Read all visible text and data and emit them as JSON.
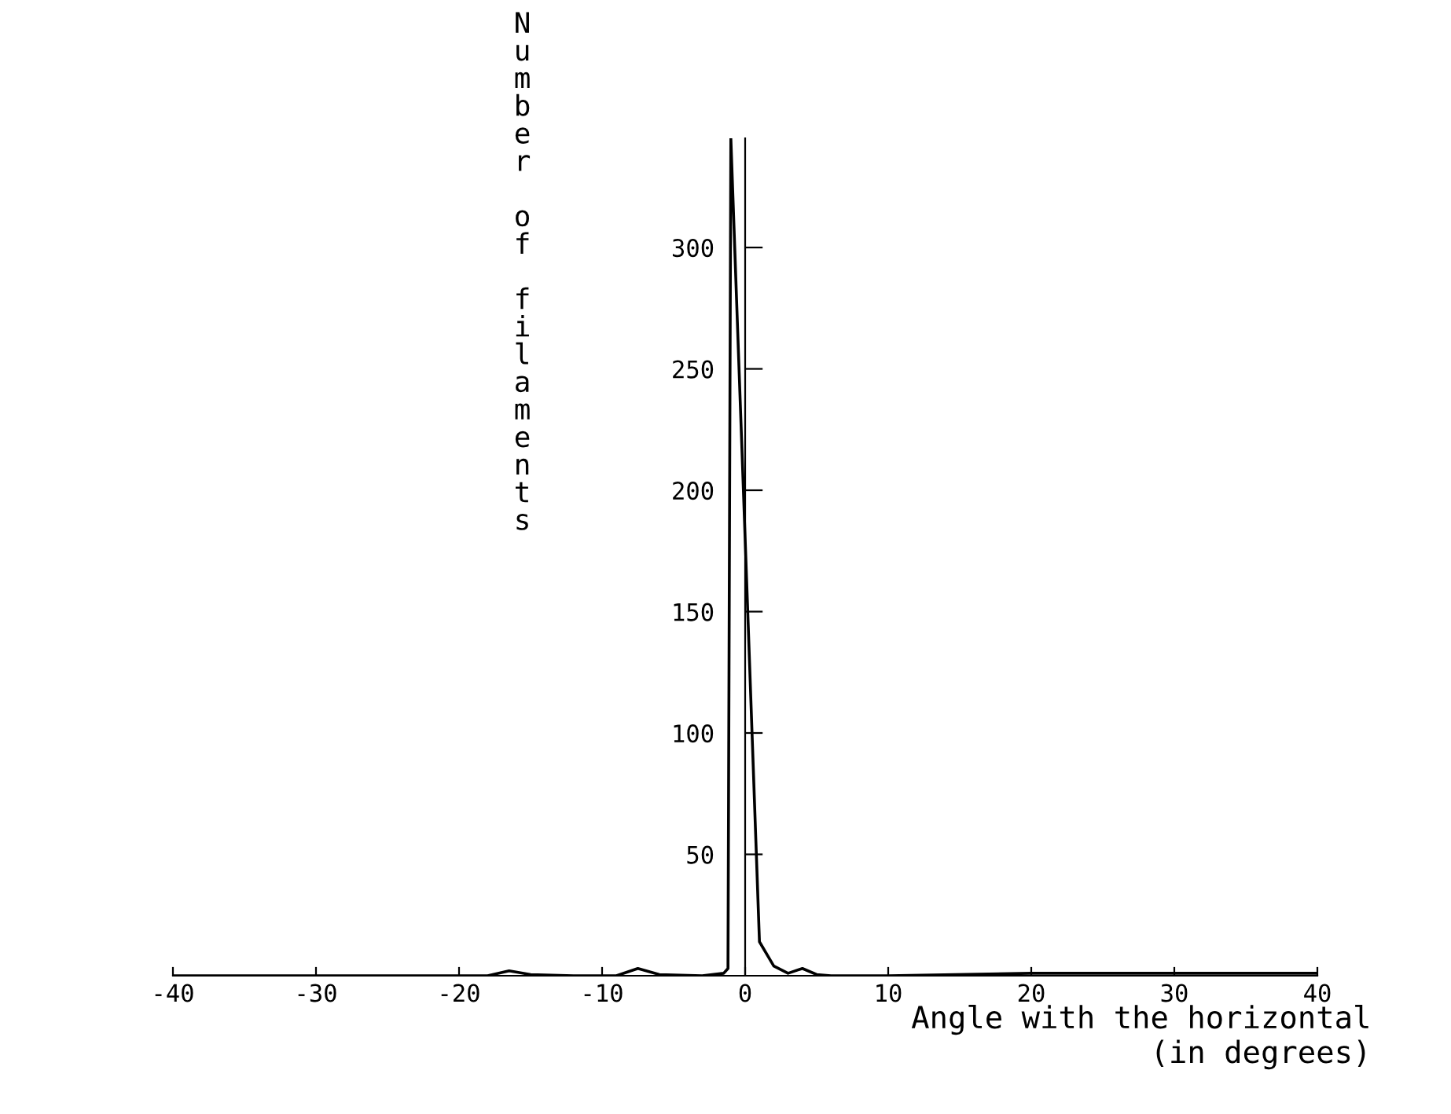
{
  "chart_data": {
    "type": "line",
    "xlabel": "Angle with the horizontal\n(in degrees)",
    "ylabel": "Number of filaments",
    "x": [
      -40,
      -18,
      -16.5,
      -15,
      -12,
      -9,
      -7.5,
      -6,
      -3,
      -1.5,
      -1.2,
      -1.0,
      -0.5,
      0,
      0.5,
      1,
      2,
      3,
      4,
      5,
      6,
      10,
      20,
      30,
      40
    ],
    "series": [
      {
        "color": "#000000",
        "values": [
          0,
          0,
          2,
          0.5,
          0,
          0,
          3,
          0.5,
          0,
          1,
          3,
          345,
          262,
          180,
          97,
          14,
          4,
          1,
          3,
          0.5,
          0,
          0,
          1,
          1,
          1
        ]
      }
    ],
    "xlim": [
      -40,
      40
    ],
    "xticks": [
      -40,
      -30,
      -20,
      -10,
      0,
      10,
      20,
      30,
      40
    ],
    "ylim": [
      0,
      345
    ],
    "yticks": [
      50,
      100,
      150,
      200,
      250,
      300
    ],
    "grid": false,
    "legend": false
  }
}
